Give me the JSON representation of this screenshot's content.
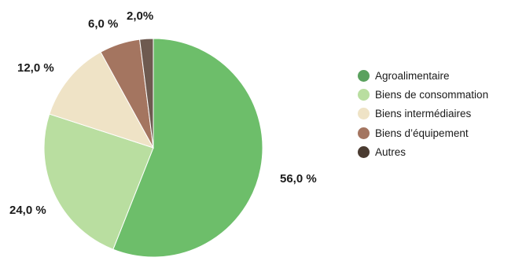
{
  "chart_data": {
    "type": "pie",
    "categories": [
      "Agroalimentaire",
      "Biens de consommation",
      "Biens intermédiaires",
      "Biens d’équipement",
      "Autres"
    ],
    "values": [
      56.0,
      24.0,
      12.0,
      6.0,
      2.0
    ],
    "value_labels": [
      "56,0 %",
      "24,0 %",
      "12,0 %",
      "6,0 %",
      "2,0%"
    ],
    "colors": [
      "#6dbe6a",
      "#b9dea0",
      "#efe3c6",
      "#a47560",
      "#6e5a50"
    ],
    "legend_colors": [
      "#5aa15e",
      "#b9dea0",
      "#efe3c6",
      "#a47560",
      "#4a3b31"
    ],
    "start_angle": "top",
    "direction": "clockwise",
    "legend_position": "right"
  }
}
